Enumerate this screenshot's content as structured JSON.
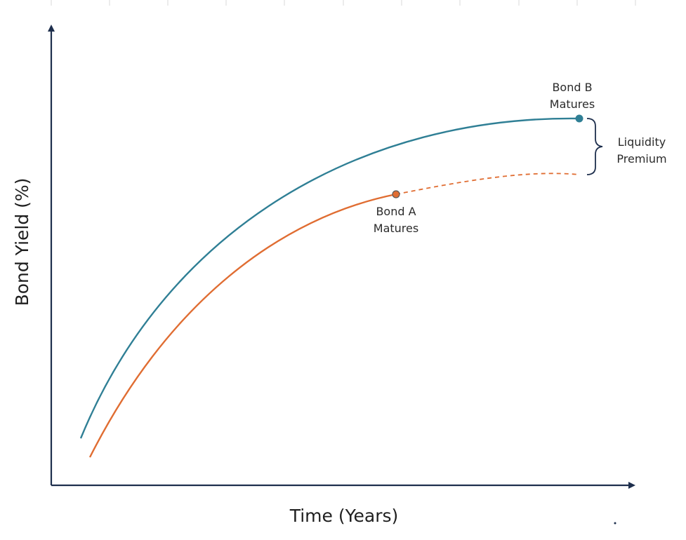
{
  "colors": {
    "axis": "#1e2f4d",
    "bond_b": "#2f7f95",
    "bond_a": "#e06d32",
    "bracket": "#1e2f4d",
    "top_ticks": "#d9d9d9"
  },
  "chart_data": {
    "type": "line",
    "xlabel": "Time (Years)",
    "ylabel": "Bond Yield (%)",
    "series": [
      {
        "name": "Bond B",
        "style": "solid",
        "color": "#2f7f95"
      },
      {
        "name": "Bond A",
        "style": "solid-then-dashed",
        "color": "#e06d32"
      }
    ],
    "annotations": {
      "bond_b": [
        "Bond B",
        "Matures"
      ],
      "bond_a": [
        "Bond A",
        "Matures"
      ],
      "premium": [
        "Liquidity",
        "Premium"
      ]
    }
  }
}
